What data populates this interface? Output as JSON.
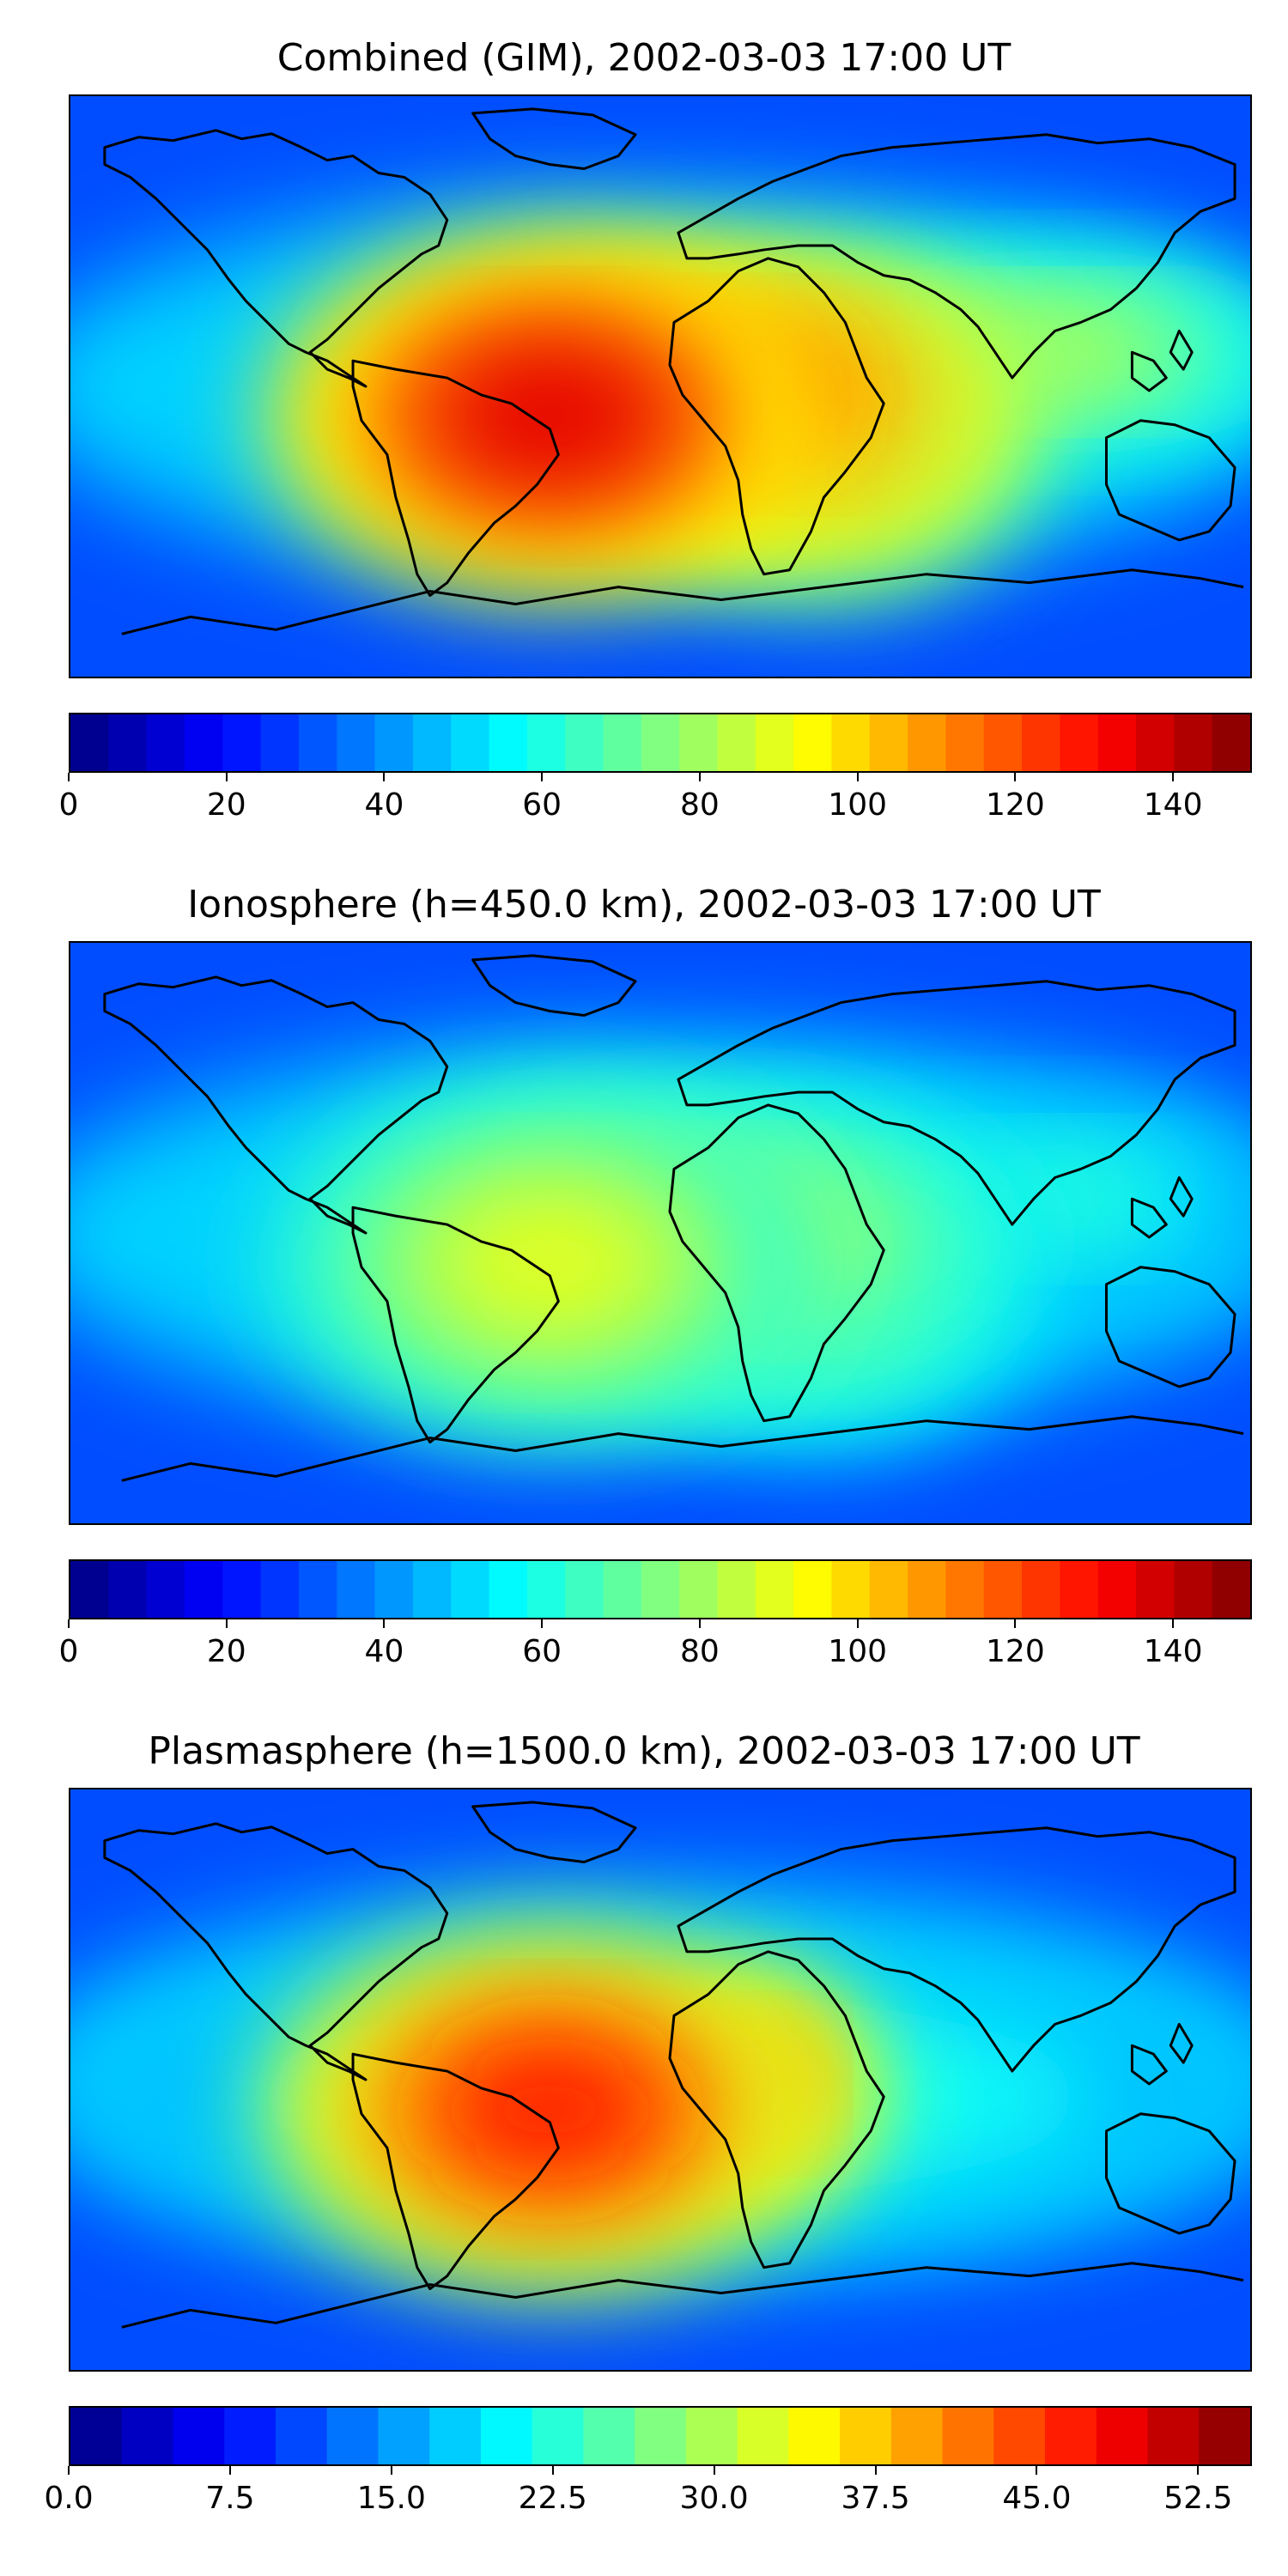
{
  "panels": [
    {
      "title": "Combined (GIM), 2002-03-03 17:00 UT",
      "colorbar": {
        "min": 0,
        "max": 150,
        "levels": 31,
        "ticks": [
          "0",
          "20",
          "40",
          "60",
          "80",
          "100",
          "120",
          "140"
        ],
        "tick_values": [
          0,
          20,
          40,
          60,
          80,
          100,
          120,
          140
        ]
      },
      "blobs": [
        {
          "region": "south-america",
          "level": 0.9
        },
        {
          "region": "tropical-atlantic",
          "level": 0.82
        },
        {
          "region": "africa",
          "level": 0.7
        },
        {
          "region": "indian-ocean",
          "level": 0.55
        }
      ]
    },
    {
      "title": "Ionosphere  (h=450.0 km), 2002-03-03 17:00 UT",
      "colorbar": {
        "min": 0,
        "max": 150,
        "levels": 31,
        "ticks": [
          "0",
          "20",
          "40",
          "60",
          "80",
          "100",
          "120",
          "140"
        ],
        "tick_values": [
          0,
          20,
          40,
          60,
          80,
          100,
          120,
          140
        ]
      },
      "blobs": [
        {
          "region": "south-america",
          "level": 0.6
        },
        {
          "region": "tropical-atlantic",
          "level": 0.58
        },
        {
          "region": "africa",
          "level": 0.5
        },
        {
          "region": "indian-ocean",
          "level": 0.42
        }
      ]
    },
    {
      "title": "Plasmasphere (h=1500.0 km), 2002-03-03 17:00 UT",
      "colorbar": {
        "min": 0,
        "max": 55,
        "levels": 23,
        "ticks": [
          "0.0",
          "7.5",
          "15.0",
          "22.5",
          "30.0",
          "37.5",
          "45.0",
          "52.5"
        ],
        "tick_values": [
          0,
          7.5,
          15,
          22.5,
          30,
          37.5,
          45,
          52.5
        ]
      },
      "blobs": [
        {
          "region": "south-america",
          "level": 0.85
        },
        {
          "region": "east-africa",
          "level": 0.78
        },
        {
          "region": "tropical-band",
          "level": 0.45
        }
      ]
    }
  ]
}
